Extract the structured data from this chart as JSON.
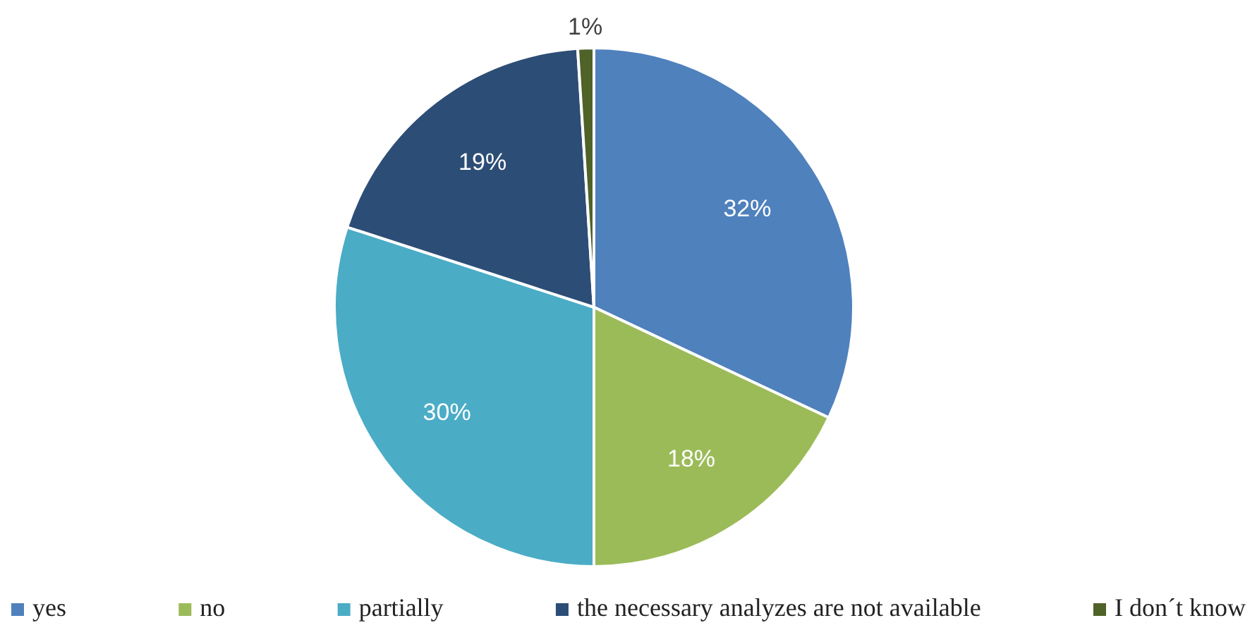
{
  "chart_data": {
    "type": "pie",
    "categories": [
      "yes",
      "no",
      "partially",
      "the necessary analyzes are not available",
      "I don´t know"
    ],
    "values": [
      32,
      18,
      30,
      19,
      1
    ],
    "colors": [
      "#4f81bd",
      "#9bbb59",
      "#4bacc6",
      "#2c4d75",
      "#4f6228"
    ],
    "value_labels": [
      "32%",
      "18%",
      "30%",
      "19%",
      "1%"
    ],
    "legend": "bottom"
  }
}
